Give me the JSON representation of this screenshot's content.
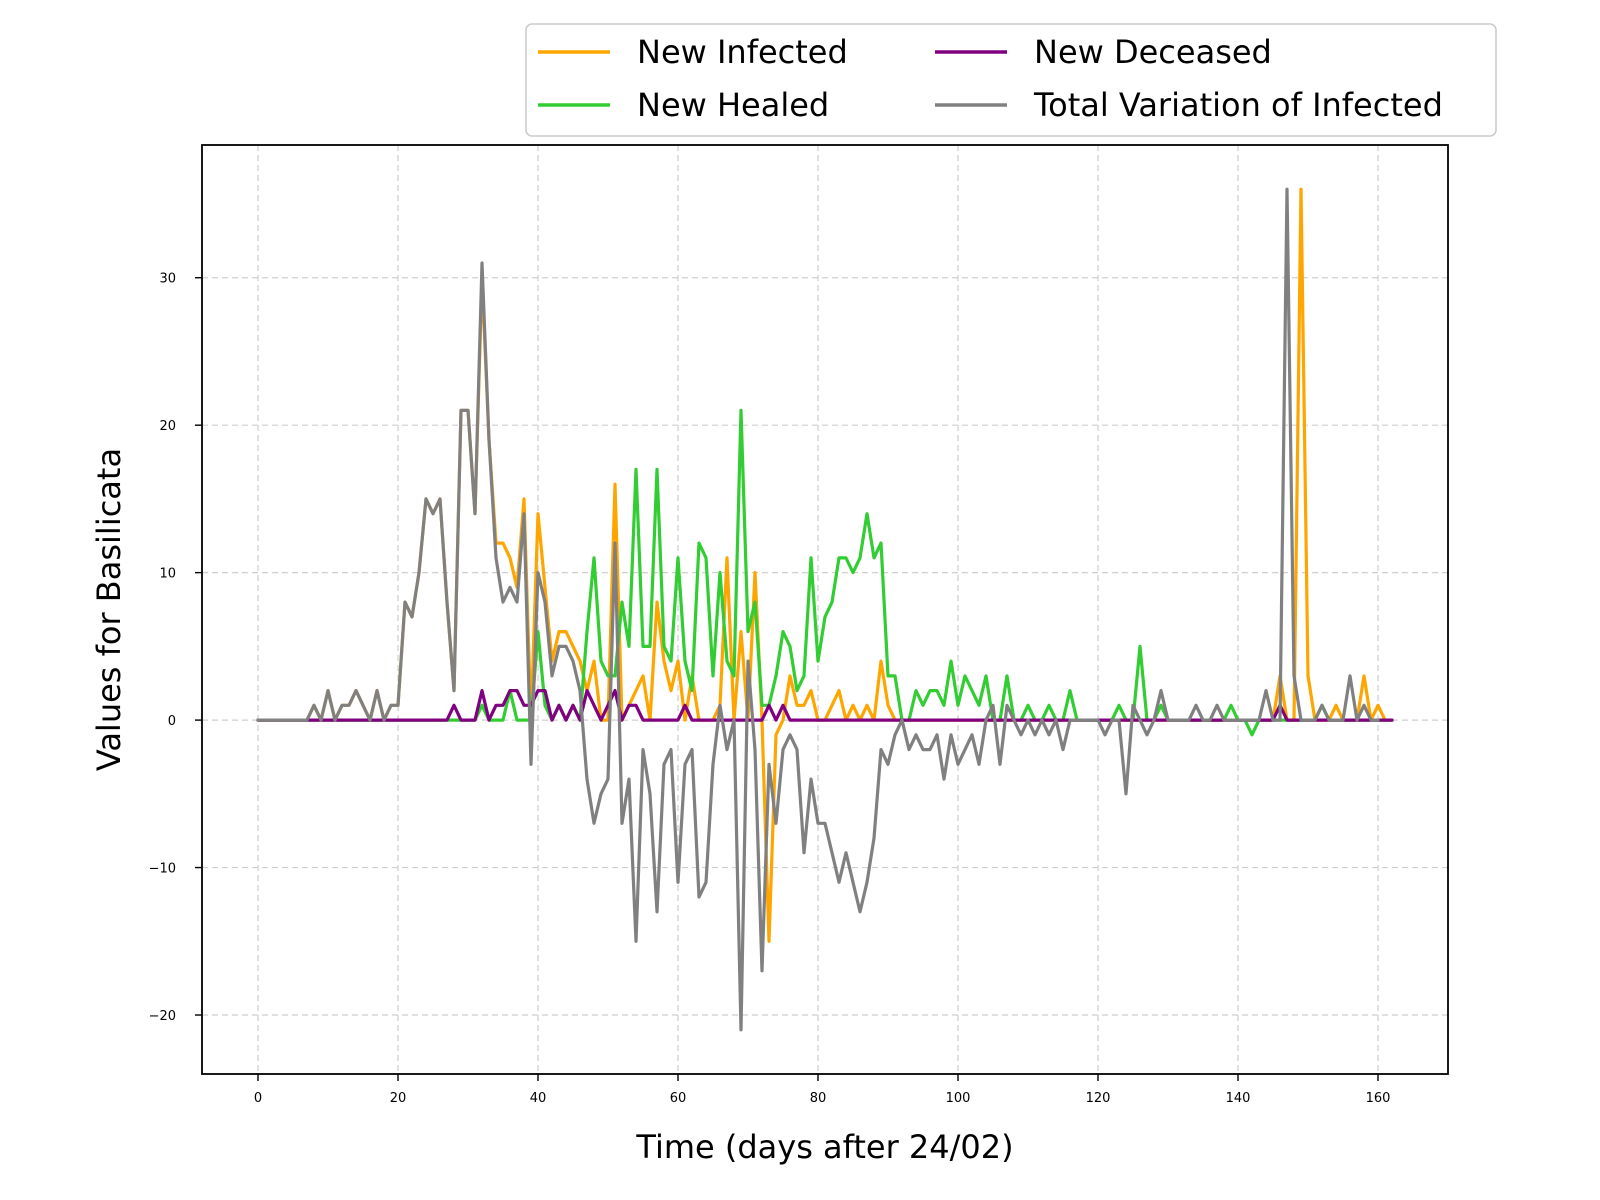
{
  "chart_data": {
    "type": "line",
    "title": "",
    "xlabel": "Time (days after 24/02)",
    "ylabel": "Values for Basilicata",
    "xlim": [
      -8,
      170
    ],
    "ylim": [
      -24,
      39
    ],
    "xticks": [
      0,
      20,
      40,
      60,
      80,
      100,
      120,
      140,
      160
    ],
    "yticks": [
      -20,
      -10,
      0,
      10,
      20,
      30
    ],
    "xtick_labels": [
      "0",
      "20",
      "40",
      "60",
      "80",
      "100",
      "120",
      "140",
      "160"
    ],
    "ytick_labels": [
      "−20",
      "−10",
      "0",
      "10",
      "20",
      "30"
    ],
    "grid": true,
    "legend_position": "top-right",
    "x_start": 0,
    "series": [
      {
        "name": "New Infected",
        "color": "#ffa500",
        "values": [
          0,
          0,
          0,
          0,
          0,
          0,
          0,
          0,
          1,
          0,
          2,
          0,
          1,
          1,
          2,
          1,
          0,
          2,
          0,
          1,
          1,
          8,
          7,
          10,
          15,
          14,
          15,
          8,
          2,
          21,
          21,
          14,
          30,
          19,
          12,
          12,
          11,
          9,
          15,
          0,
          14,
          9,
          4,
          6,
          6,
          5,
          4,
          2,
          4,
          0,
          0,
          16,
          0,
          1,
          2,
          3,
          0,
          8,
          4,
          2,
          4,
          0,
          3,
          0,
          0,
          0,
          1,
          11,
          0,
          6,
          0,
          10,
          0,
          -15,
          -1,
          0,
          3,
          1,
          1,
          2,
          0,
          0,
          1,
          2,
          0,
          1,
          0,
          1,
          0,
          4,
          1,
          0,
          0,
          0,
          0,
          0,
          0,
          0,
          0,
          0,
          0,
          0,
          0,
          0,
          0,
          0,
          0,
          0,
          0,
          0,
          0,
          0,
          0,
          0,
          0,
          0,
          0,
          0,
          0,
          0,
          0,
          0,
          0,
          0,
          0,
          0,
          0,
          0,
          0,
          0,
          0,
          0,
          0,
          0,
          0,
          0,
          0,
          0,
          0,
          0,
          0,
          0,
          0,
          0,
          0,
          0,
          3,
          0,
          0,
          36,
          3,
          0,
          0,
          0,
          1,
          0,
          0,
          0,
          3,
          0,
          1,
          0,
          0
        ]
      },
      {
        "name": "New Healed",
        "color": "#32cd32",
        "values": [
          0,
          0,
          0,
          0,
          0,
          0,
          0,
          0,
          0,
          0,
          0,
          0,
          0,
          0,
          0,
          0,
          0,
          0,
          0,
          0,
          0,
          0,
          0,
          0,
          0,
          0,
          0,
          0,
          0,
          0,
          0,
          0,
          1,
          0,
          0,
          0,
          2,
          0,
          0,
          0,
          6,
          1,
          0,
          1,
          0,
          1,
          0,
          6,
          11,
          4,
          3,
          3,
          8,
          5,
          17,
          5,
          5,
          17,
          5,
          4,
          11,
          4,
          2,
          12,
          11,
          3,
          10,
          4,
          3,
          21,
          6,
          8,
          1,
          1,
          3,
          6,
          5,
          2,
          3,
          11,
          4,
          7,
          8,
          11,
          11,
          10,
          11,
          14,
          11,
          12,
          3,
          3,
          0,
          0,
          2,
          1,
          2,
          2,
          1,
          4,
          1,
          3,
          2,
          1,
          3,
          0,
          0,
          3,
          0,
          0,
          1,
          0,
          0,
          1,
          0,
          0,
          2,
          0,
          0,
          0,
          0,
          0,
          0,
          1,
          0,
          0,
          5,
          0,
          0,
          1,
          0,
          0,
          0,
          0,
          0,
          0,
          0,
          0,
          0,
          1,
          0,
          0,
          -1,
          0,
          0,
          0,
          0,
          0,
          0,
          0,
          0,
          0,
          1,
          0,
          0,
          0,
          0,
          0,
          0,
          0,
          0,
          0,
          0
        ]
      },
      {
        "name": "New Deceased",
        "color": "#800080",
        "values": [
          0,
          0,
          0,
          0,
          0,
          0,
          0,
          0,
          0,
          0,
          0,
          0,
          0,
          0,
          0,
          0,
          0,
          0,
          0,
          0,
          0,
          0,
          0,
          0,
          0,
          0,
          0,
          0,
          1,
          0,
          0,
          0,
          2,
          0,
          1,
          1,
          2,
          2,
          1,
          1,
          2,
          2,
          0,
          1,
          0,
          1,
          0,
          2,
          1,
          0,
          1,
          2,
          0,
          1,
          1,
          0,
          0,
          0,
          0,
          0,
          0,
          1,
          0,
          0,
          0,
          0,
          0,
          0,
          0,
          0,
          0,
          0,
          0,
          1,
          0,
          1,
          0,
          0,
          0,
          0,
          0,
          0,
          0,
          0,
          0,
          0,
          0,
          0,
          0,
          0,
          0,
          0,
          0,
          0,
          0,
          0,
          0,
          0,
          0,
          0,
          0,
          0,
          0,
          0,
          0,
          0,
          0,
          0,
          0,
          0,
          0,
          0,
          0,
          0,
          0,
          0,
          0,
          0,
          0,
          0,
          0,
          0,
          0,
          0,
          0,
          0,
          0,
          0,
          0,
          0,
          0,
          0,
          0,
          0,
          0,
          0,
          0,
          0,
          0,
          0,
          0,
          0,
          0,
          0,
          0,
          0,
          1,
          0,
          0,
          0,
          0,
          0,
          0,
          0,
          0,
          0,
          0,
          0,
          0,
          0,
          0,
          0,
          0
        ]
      },
      {
        "name": "Total Variation of Infected",
        "color": "#808080",
        "values": [
          0,
          0,
          0,
          0,
          0,
          0,
          0,
          0,
          1,
          0,
          2,
          0,
          1,
          1,
          2,
          1,
          0,
          2,
          0,
          1,
          1,
          8,
          7,
          10,
          15,
          14,
          15,
          8,
          2,
          21,
          21,
          14,
          31,
          19,
          11,
          8,
          9,
          8,
          14,
          -3,
          10,
          8,
          3,
          5,
          5,
          4,
          2,
          -4,
          -7,
          -5,
          -4,
          12,
          -7,
          -4,
          -15,
          -2,
          -5,
          -13,
          -3,
          -2,
          -11,
          -3,
          -2,
          -12,
          -11,
          -3,
          1,
          -2,
          0,
          -21,
          4,
          -2,
          -17,
          -3,
          -7,
          -2,
          -1,
          -2,
          -9,
          -4,
          -7,
          -7,
          -9,
          -11,
          -9,
          -11,
          -13,
          -11,
          -8,
          -2,
          -3,
          -1,
          0,
          -2,
          -1,
          -2,
          -2,
          -1,
          -4,
          -1,
          -3,
          -2,
          -1,
          -3,
          0,
          1,
          -3,
          1,
          0,
          -1,
          0,
          -1,
          0,
          -1,
          0,
          -2,
          0,
          0,
          0,
          0,
          0,
          -1,
          0,
          0,
          -5,
          1,
          0,
          -1,
          0,
          2,
          0,
          0,
          0,
          0,
          1,
          0,
          0,
          1,
          0,
          0,
          0,
          0,
          0,
          0,
          2,
          0,
          0,
          36,
          3,
          0,
          0,
          0,
          1,
          0,
          0,
          0,
          3,
          0,
          1,
          0,
          0
        ]
      }
    ]
  }
}
